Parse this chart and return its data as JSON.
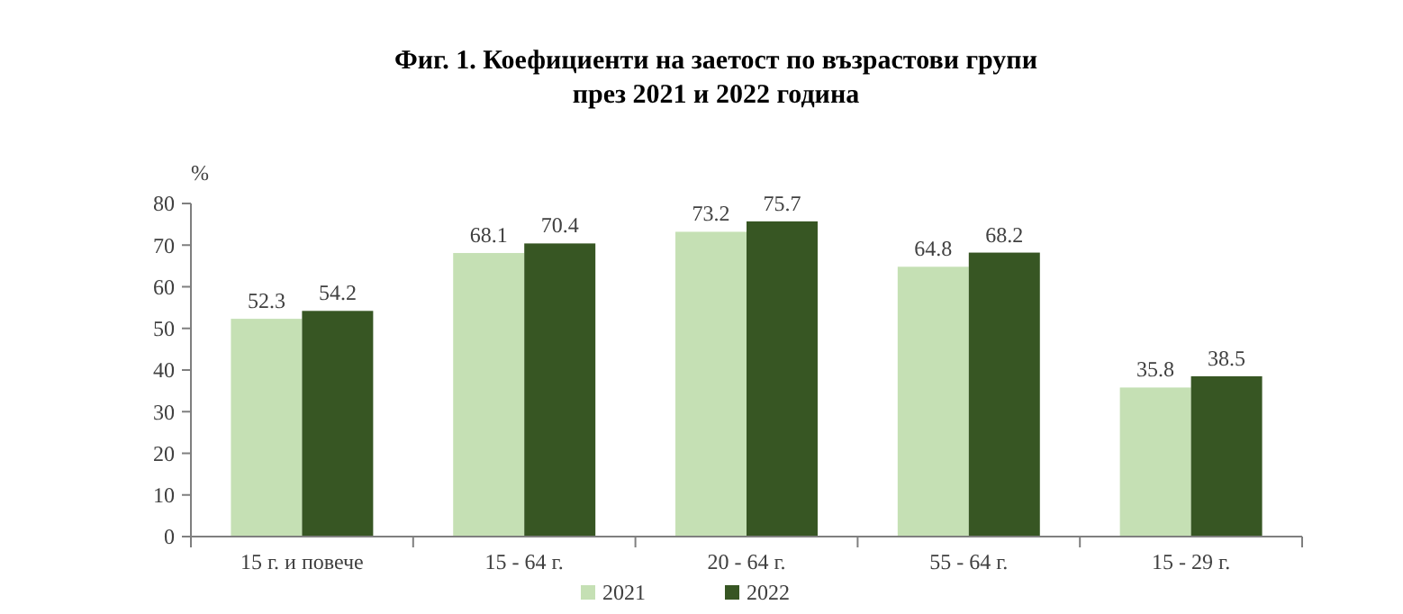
{
  "chart_data": {
    "type": "bar",
    "title": "Фиг. 1. Коефициенти на заетост по възрастови групи\nпрез 2021 и 2022 година",
    "ylabel": "%",
    "categories": [
      "15 г. и повече",
      "15 - 64 г.",
      "20 - 64 г.",
      "55 - 64 г.",
      "15 - 29 г."
    ],
    "series": [
      {
        "name": "2021",
        "color": "#c5e0b4",
        "values": [
          52.3,
          68.1,
          73.2,
          64.8,
          35.8
        ]
      },
      {
        "name": "2022",
        "color": "#375623",
        "values": [
          54.2,
          70.4,
          75.7,
          68.2,
          38.5
        ]
      }
    ],
    "ylim": [
      0,
      80
    ],
    "yticks": [
      0,
      10,
      20,
      30,
      40,
      50,
      60,
      70,
      80
    ],
    "data_labels": true,
    "legend": "bottom",
    "grid": false
  }
}
